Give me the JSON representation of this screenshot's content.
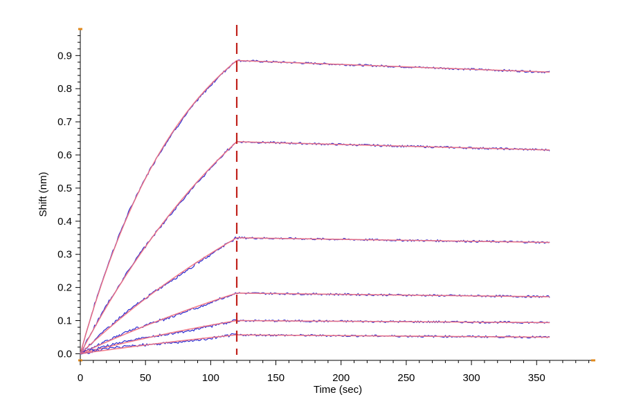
{
  "chart_data": {
    "type": "line",
    "xlabel": "Time (sec)",
    "ylabel": "Shift (nm)",
    "xlim": [
      0,
      395
    ],
    "ylim": [
      -0.02,
      0.98
    ],
    "xticks": [
      0,
      50,
      100,
      150,
      200,
      250,
      300,
      350
    ],
    "yticks": [
      0.0,
      0.1,
      0.2,
      0.3,
      0.4,
      0.5,
      0.6,
      0.7,
      0.8,
      0.9
    ],
    "ytick_labels": [
      "0.0",
      "0.1",
      "0.2",
      "0.3",
      "0.4",
      "0.5",
      "0.6",
      "0.7",
      "0.8",
      "0.9"
    ],
    "dissociation_start": 120,
    "grid": false,
    "colors": {
      "measured": "#2a2ad0",
      "fit": "#f07080",
      "marker": "#c0201a",
      "axis_ends": "#e08a1e"
    },
    "series": [
      {
        "association_end": 0.885,
        "end_value": 0.85,
        "k_obs": 0.0125
      },
      {
        "association_end": 0.64,
        "end_value": 0.615,
        "k_obs": 0.006
      },
      {
        "association_end": 0.35,
        "end_value": 0.336,
        "k_obs": 0.004
      },
      {
        "association_end": 0.183,
        "end_value": 0.172,
        "k_obs": 0.003
      },
      {
        "association_end": 0.1,
        "end_value": 0.094,
        "k_obs": 0.0035
      },
      {
        "association_end": 0.057,
        "end_value": 0.05,
        "k_obs": 0.003
      }
    ]
  }
}
